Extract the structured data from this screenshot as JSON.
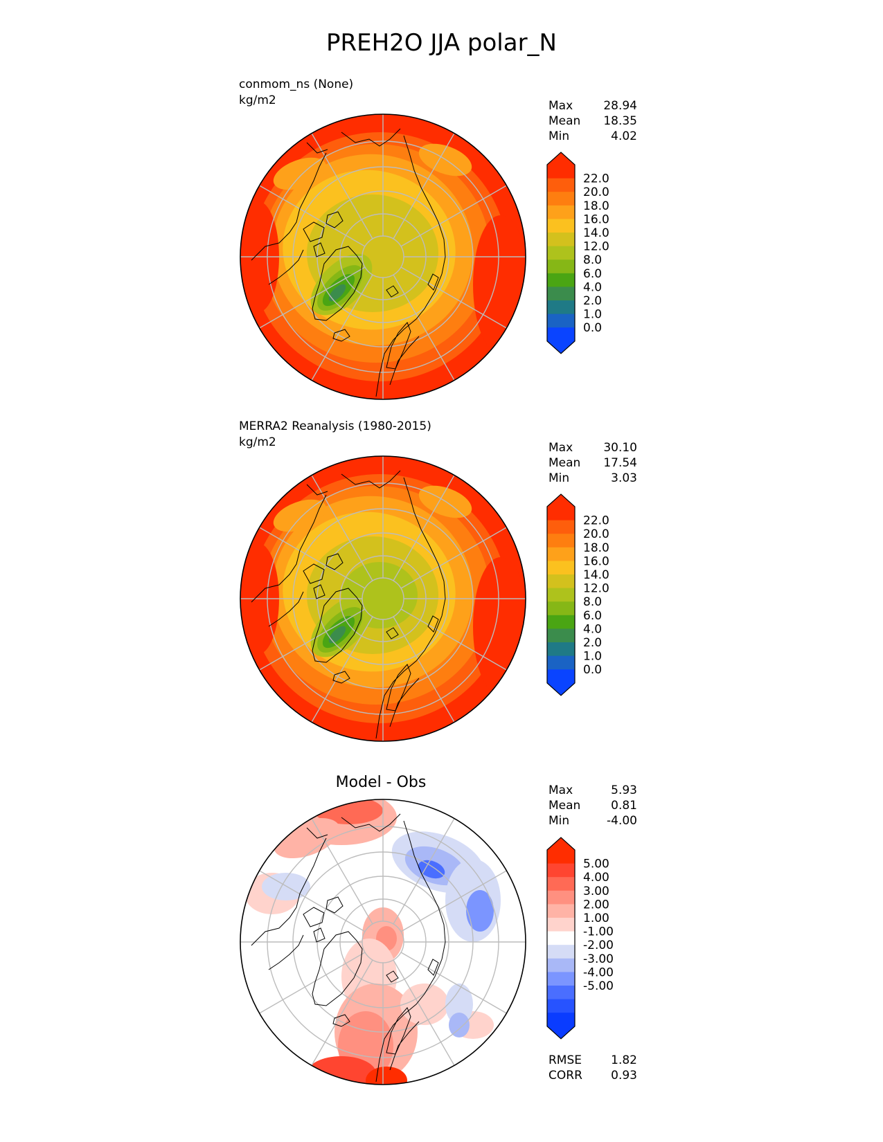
{
  "title": "PREH2O JJA polar_N",
  "colors": {
    "field": [
      "#0a44ff",
      "#1a63c4",
      "#1f7a86",
      "#3b8c4c",
      "#4aa513",
      "#86b716",
      "#aec21c",
      "#d3c11d",
      "#fbc11f",
      "#fea11a",
      "#fe7e10",
      "#fe5e0c",
      "#ff2d00"
    ],
    "diff": [
      "#0a3cff",
      "#2753ff",
      "#4a6eff",
      "#7b95ff",
      "#a9b8f7",
      "#d5dcf6",
      "#ffffff",
      "#ffd3cc",
      "#ffb3a6",
      "#ff9080",
      "#ff6a55",
      "#ff4530",
      "#ff2d00"
    ],
    "ring": "#bcbcbc",
    "coast": "#000000"
  },
  "panels": [
    {
      "name": "model",
      "title_line1": "conmom_ns (None)",
      "title_line2": "kg/m2",
      "stats": [
        {
          "label": "Max",
          "value": "28.94"
        },
        {
          "label": "Mean",
          "value": "18.35"
        },
        {
          "label": "Min",
          "value": "4.02"
        }
      ],
      "colorbar_ticks": [
        "22.0",
        "20.0",
        "18.0",
        "16.0",
        "14.0",
        "12.0",
        "8.0",
        "6.0",
        "4.0",
        "2.0",
        "1.0",
        "0.0"
      ]
    },
    {
      "name": "obs",
      "title_line1": "MERRA2 Reanalysis (1980-2015)",
      "title_line2": "kg/m2",
      "stats": [
        {
          "label": "Max",
          "value": "30.10"
        },
        {
          "label": "Mean",
          "value": "17.54"
        },
        {
          "label": "Min",
          "value": "3.03"
        }
      ],
      "colorbar_ticks": [
        "22.0",
        "20.0",
        "18.0",
        "16.0",
        "14.0",
        "12.0",
        "8.0",
        "6.0",
        "4.0",
        "2.0",
        "1.0",
        "0.0"
      ]
    },
    {
      "name": "diff",
      "title_line1": "Model - Obs",
      "stats": [
        {
          "label": "Max",
          "value": "5.93"
        },
        {
          "label": "Mean",
          "value": "0.81"
        },
        {
          "label": "Min",
          "value": "-4.00"
        }
      ],
      "colorbar_ticks": [
        "5.00",
        "4.00",
        "3.00",
        "2.00",
        "1.00",
        "-1.00",
        "-2.00",
        "-3.00",
        "-4.00",
        "-5.00"
      ],
      "metrics": [
        {
          "label": "RMSE",
          "value": "1.82"
        },
        {
          "label": "CORR",
          "value": "0.93"
        }
      ]
    }
  ],
  "chart_data": [
    {
      "type": "heatmap",
      "title": "conmom_ns (None)",
      "units": "kg/m2",
      "projection": "north-polar-stereographic",
      "levels": [
        0,
        1,
        2,
        4,
        6,
        8,
        12,
        14,
        16,
        18,
        20,
        22
      ],
      "extend": "both",
      "max": 28.94,
      "mean": 18.35,
      "min": 4.02
    },
    {
      "type": "heatmap",
      "title": "MERRA2 Reanalysis (1980-2015)",
      "units": "kg/m2",
      "projection": "north-polar-stereographic",
      "levels": [
        0,
        1,
        2,
        4,
        6,
        8,
        12,
        14,
        16,
        18,
        20,
        22
      ],
      "extend": "both",
      "max": 30.1,
      "mean": 17.54,
      "min": 3.03
    },
    {
      "type": "heatmap",
      "title": "Model - Obs",
      "projection": "north-polar-stereographic",
      "levels": [
        -5,
        -4,
        -3,
        -2,
        -1,
        1,
        2,
        3,
        4,
        5
      ],
      "extend": "both",
      "max": 5.93,
      "mean": 0.81,
      "min": -4.0,
      "rmse": 1.82,
      "corr": 0.93
    }
  ]
}
